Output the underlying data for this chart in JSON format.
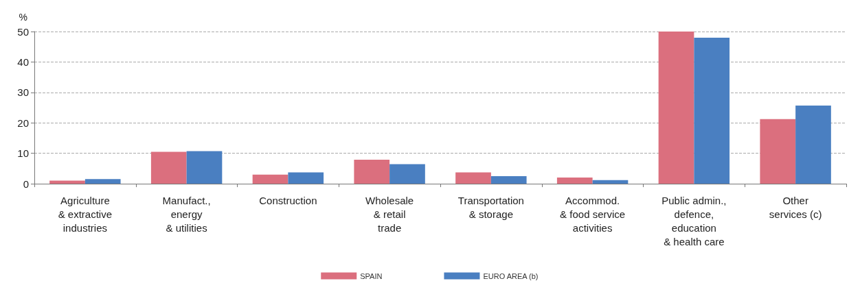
{
  "chart_data": {
    "type": "bar",
    "ylabel": "%",
    "categories": [
      "Agriculture\n& extractive\nindustries",
      "Manufact.,\nenergy\n& utilities",
      "Construction",
      "Wholesale\n& retail\ntrade",
      "Transportation\n& storage",
      "Accommod.\n& food service\nactivities",
      "Public admin.,\ndefence,\neducation\n& health care",
      "Other\nservices (c)"
    ],
    "series": [
      {
        "name": "SPAIN",
        "color": "#db6f7e",
        "values": [
          1.0,
          10.5,
          3.0,
          7.9,
          3.7,
          2.0,
          50.0,
          21.2
        ]
      },
      {
        "name": "EURO AREA (b)",
        "color": "#4a7fc1",
        "values": [
          1.5,
          10.7,
          3.7,
          6.4,
          2.5,
          1.2,
          48.0,
          25.7
        ]
      }
    ],
    "ylim": [
      0,
      50
    ],
    "yticks": [
      0,
      10,
      20,
      30,
      40,
      50
    ],
    "grid": "y",
    "legend": "bottom"
  }
}
